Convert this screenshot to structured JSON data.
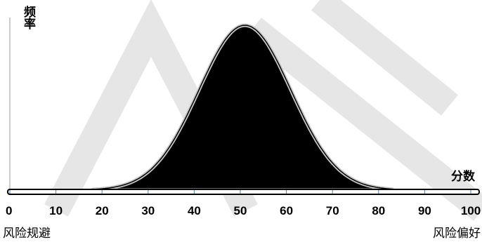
{
  "chart_data": {
    "type": "area",
    "title": "",
    "xlabel": "分数",
    "ylabel": "频率",
    "xlim": [
      0,
      100
    ],
    "x_ticks": [
      0,
      10,
      20,
      30,
      40,
      50,
      60,
      70,
      80,
      90,
      100
    ],
    "tick_labels": [
      "0",
      "10",
      "20",
      "30",
      "40",
      "50",
      "60",
      "70",
      "80",
      "90",
      "100"
    ],
    "left_end_label": "风险规避",
    "right_end_label": "风险偏好",
    "watermark": "CAN",
    "series": [
      {
        "distribution": "normal",
        "mean": 51,
        "std_dev": 10,
        "x_range": [
          18,
          83
        ]
      }
    ],
    "grid": false,
    "legend": "none",
    "colors": {
      "fill": "#000000",
      "outline": "#c8c8c8",
      "baseline_ticks": "#4a7bb5",
      "watermark": "#e6e6e6"
    }
  }
}
